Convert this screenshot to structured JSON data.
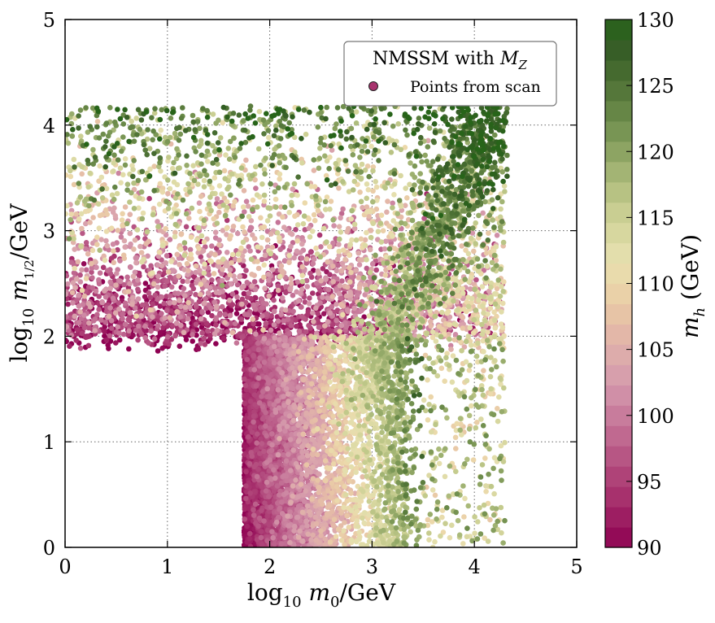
{
  "chart_data": {
    "type": "scatter",
    "title": "",
    "xlabel": {
      "prefix": "log",
      "sub": "10",
      "var": "m",
      "varsub": "0",
      "suffix": "/GeV"
    },
    "ylabel": {
      "prefix": "log",
      "sub": "10",
      "var": "m",
      "varsub": "1/2",
      "suffix": "/GeV"
    },
    "xlim": [
      0,
      5
    ],
    "ylim": [
      0,
      5
    ],
    "xticks": [
      "0",
      "1",
      "2",
      "3",
      "4",
      "5"
    ],
    "yticks": [
      "0",
      "1",
      "2",
      "3",
      "4",
      "5"
    ],
    "grid": true,
    "legend": {
      "position": "top-right",
      "title_text": "NMSSM with ",
      "title_math": "M",
      "title_math_sub": "Z",
      "entry": "Points from scan"
    },
    "colorbar": {
      "label_var": "m",
      "label_sub": "h",
      "label_unit": " (GeV)",
      "min": 90,
      "max": 130,
      "ticks": [
        "90",
        "95",
        "100",
        "105",
        "110",
        "115",
        "120",
        "125",
        "130"
      ],
      "colors": [
        "#8e0152",
        "#9b1a60",
        "#a8336e",
        "#b24a7d",
        "#bd638d",
        "#c87c9c",
        "#d395aa",
        "#dba7ad",
        "#e3b6a8",
        "#e8c6a6",
        "#ecd8aa",
        "#e5dfae",
        "#d6d69e",
        "#c3ca8c",
        "#a9b979",
        "#8da463",
        "#72904f",
        "#5b7d3e",
        "#466b30",
        "#345c25",
        "#276419"
      ]
    },
    "series": [
      {
        "name": "Points from scan",
        "description_regions": [
          {
            "region": "dense band",
            "x_range": [
              1.75,
              4.3
            ],
            "y_range": [
              0,
              2.0
            ],
            "mh_trend": "90 at x≈1.9 rising to ~120 at x≈3.5"
          },
          {
            "region": "upper sparse band",
            "x_range": [
              0,
              4.3
            ],
            "y_range": [
              1.9,
              4.2
            ],
            "mh_trend": "~95 at y≈2 rising to ~128 at y≈4.1"
          }
        ]
      }
    ]
  }
}
